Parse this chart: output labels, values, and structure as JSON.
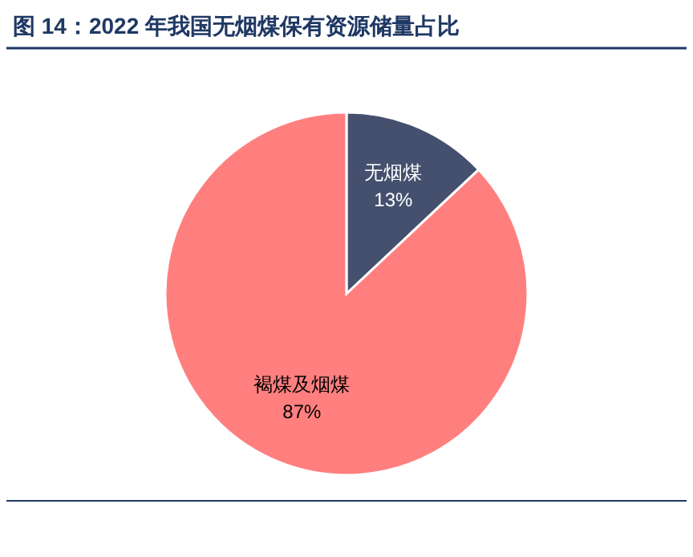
{
  "chart_data": {
    "type": "pie",
    "title": "图 14：2022 年我国无烟煤保有资源储量占比",
    "categories": [
      "无烟煤",
      "褐煤及烟煤"
    ],
    "values": [
      13,
      87
    ],
    "colors": [
      "#44506e",
      "#ff7f7f"
    ],
    "value_labels": [
      "13%",
      "87%"
    ]
  }
}
